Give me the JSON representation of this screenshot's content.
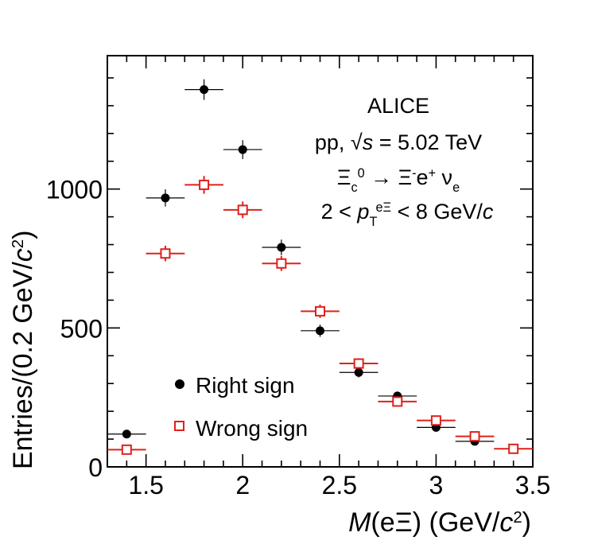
{
  "chart_data": {
    "type": "scatter",
    "xlabel": "M(eΞ) (GeV/c²)",
    "ylabel": "Entries/(0.2 GeV/c²)",
    "xlim": [
      1.3,
      3.5
    ],
    "ylim": [
      0,
      1480
    ],
    "x_ticks": [
      1.5,
      2,
      2.5,
      3,
      3.5
    ],
    "x_tick_labels": [
      "1.5",
      "2",
      "2.5",
      "3",
      "3.5"
    ],
    "y_ticks": [
      0,
      500,
      1000
    ],
    "y_tick_labels": [
      "0",
      "500",
      "1000"
    ],
    "bin_half_width": 0.1,
    "annotations": {
      "experiment": "ALICE",
      "system": "pp, √s = 5.02 TeV",
      "decay": "Ξc0 → Ξ- e+ νe",
      "pt_range": "2 < pT^eΞ < 8 GeV/c"
    },
    "legend_position": "bottom-left",
    "series": [
      {
        "name": "Right sign",
        "marker": "filled-circle",
        "color": "#000000",
        "x": [
          1.4,
          1.6,
          1.8,
          2.0,
          2.2,
          2.4,
          2.6,
          2.8,
          3.0,
          3.2,
          3.4
        ],
        "y": [
          118,
          968,
          1358,
          1142,
          790,
          490,
          340,
          255,
          142,
          92,
          65
        ],
        "yerr": [
          11,
          31,
          37,
          34,
          28,
          22,
          18,
          16,
          12,
          10,
          8
        ]
      },
      {
        "name": "Wrong sign",
        "marker": "open-square",
        "color": "#e0201b",
        "x": [
          1.4,
          1.6,
          1.8,
          2.0,
          2.2,
          2.4,
          2.6,
          2.8,
          3.0,
          3.2,
          3.4
        ],
        "y": [
          62,
          768,
          1015,
          925,
          732,
          560,
          372,
          235,
          167,
          110,
          65
        ],
        "yerr": [
          8,
          28,
          32,
          30,
          27,
          24,
          19,
          15,
          13,
          10,
          8
        ]
      }
    ]
  }
}
